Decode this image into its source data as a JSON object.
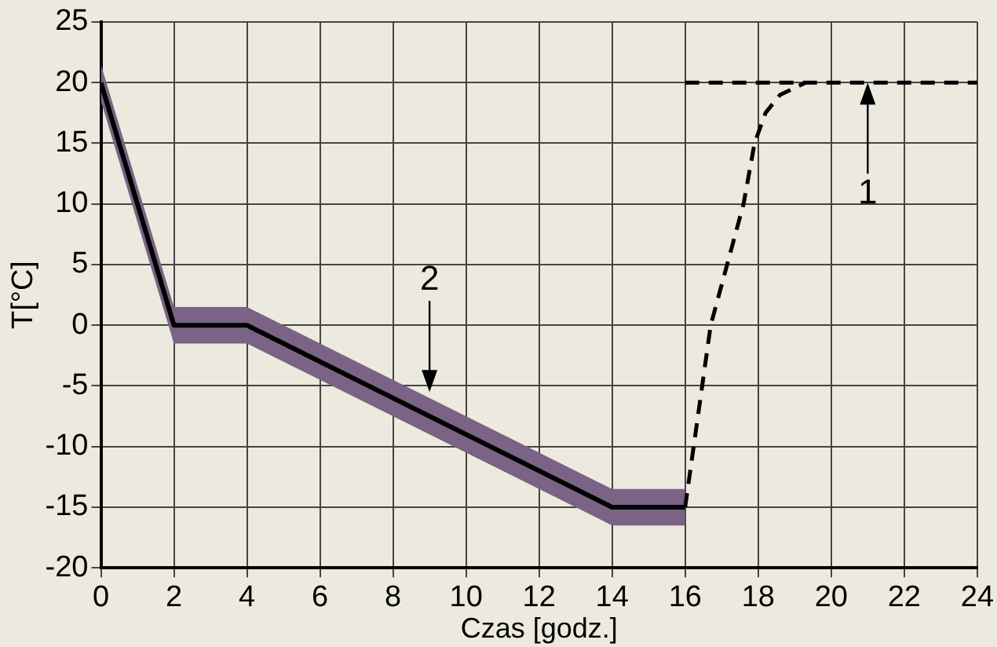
{
  "chart_data": {
    "type": "line",
    "xlabel": "Czas [godz.]",
    "ylabel": "T[°C]",
    "xlim": [
      0,
      24
    ],
    "xticks": [
      0,
      2,
      4,
      6,
      8,
      10,
      12,
      14,
      16,
      18,
      20,
      22,
      24
    ],
    "ylim": [
      -20,
      25
    ],
    "yticks": [
      -20,
      -15,
      -10,
      -5,
      0,
      5,
      10,
      15,
      20,
      25
    ],
    "grid": true,
    "legend": false,
    "marker": "none",
    "series": [
      {
        "color": "#000000",
        "x": [
          0,
          2,
          4,
          14,
          16
        ],
        "values": [
          20,
          0,
          0,
          -15,
          -15
        ],
        "lower": [
          18.5,
          -1.5,
          -1.5,
          -16.5,
          -16.5
        ],
        "upper": [
          21.5,
          1.5,
          1.5,
          -13.5,
          -13.5
        ],
        "line_style": "solid"
      },
      {
        "color": "#000000",
        "x": [
          16,
          24
        ],
        "values": [
          20,
          20
        ],
        "line_style": "dashed"
      },
      {
        "color": "#000000",
        "x": [
          16,
          16.7,
          17.6,
          17.9,
          18.2,
          18.6,
          19.3
        ],
        "values": [
          -15,
          0,
          10,
          15,
          17.5,
          19,
          20
        ],
        "line_style": "dashed"
      }
    ],
    "annotations": [
      {
        "text": "2",
        "x": 9,
        "y": -5.5
      },
      {
        "text": "1",
        "x": 21,
        "y": 20
      }
    ]
  }
}
